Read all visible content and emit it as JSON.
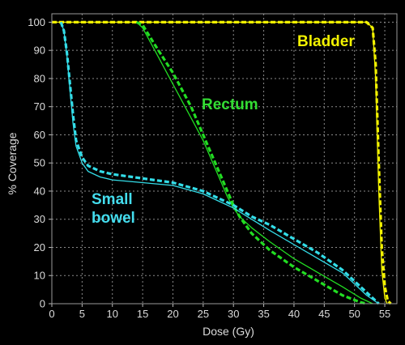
{
  "chart_data": {
    "type": "line",
    "xlabel": "Dose (Gy)",
    "ylabel": "% Coverage",
    "xlim": [
      0,
      57
    ],
    "ylim": [
      0,
      103
    ],
    "xticks": [
      0,
      5,
      10,
      15,
      20,
      25,
      30,
      35,
      40,
      45,
      50,
      55
    ],
    "yticks": [
      0,
      10,
      20,
      30,
      40,
      50,
      60,
      70,
      80,
      90,
      100
    ],
    "grid": true,
    "background": "#000000",
    "annotations": [
      {
        "lines": [
          "Bladder"
        ],
        "color": "#f2f200"
      },
      {
        "lines": [
          "Rectum"
        ],
        "color": "#33dd33"
      },
      {
        "lines": [
          "Small",
          "bowel"
        ],
        "color": "#44ddee"
      }
    ],
    "series": [
      {
        "color": "#f2f200",
        "style": "solid",
        "x": [
          0,
          52,
          53,
          53.5,
          54,
          54.5,
          55,
          55.4
        ],
        "y": [
          100,
          100,
          98,
          80,
          40,
          12,
          2,
          0
        ]
      },
      {
        "color": "#f2f200",
        "style": "dashed",
        "x": [
          0,
          52,
          53,
          53.5,
          54,
          54.5,
          55,
          55.5,
          56
        ],
        "y": [
          100,
          100,
          98,
          85,
          50,
          20,
          6,
          1,
          0
        ]
      },
      {
        "color": "#22dd22",
        "style": "solid",
        "x": [
          14,
          15,
          17,
          20,
          23,
          25,
          27,
          29,
          30,
          31,
          33,
          36,
          40,
          44,
          48,
          51,
          53
        ],
        "y": [
          100,
          98,
          90,
          78,
          66,
          58,
          48,
          38,
          34,
          31,
          27,
          22,
          16,
          11,
          6,
          2,
          0
        ]
      },
      {
        "color": "#22dd22",
        "style": "dashed",
        "x": [
          14,
          15,
          17,
          20,
          23,
          25,
          27,
          29,
          30,
          31,
          33,
          36,
          40,
          44,
          48,
          51,
          52
        ],
        "y": [
          100,
          99,
          92,
          82,
          70,
          60,
          50,
          40,
          35,
          31,
          25,
          19,
          13,
          8,
          3,
          0.5,
          0
        ]
      },
      {
        "color": "#33dde8",
        "style": "solid",
        "x": [
          1.5,
          2,
          2.5,
          3,
          3.5,
          4,
          5,
          6,
          8,
          10,
          15,
          20,
          25,
          28,
          30,
          33,
          36,
          40,
          44,
          48,
          50,
          52,
          54
        ],
        "y": [
          100,
          97,
          88,
          76,
          64,
          56,
          50,
          47,
          45,
          44,
          43,
          42,
          39,
          36,
          34,
          30,
          26,
          21,
          16,
          11,
          7,
          3,
          0
        ]
      },
      {
        "color": "#33dde8",
        "style": "dashed",
        "x": [
          1.5,
          2,
          2.5,
          3,
          3.5,
          4,
          5,
          6,
          8,
          10,
          15,
          20,
          25,
          28,
          30,
          33,
          36,
          40,
          44,
          48,
          50,
          52,
          54
        ],
        "y": [
          100,
          97,
          89,
          78,
          67,
          58,
          52,
          49,
          47,
          46,
          44.5,
          43,
          40,
          37,
          35,
          31,
          28,
          23,
          18,
          12,
          8,
          4,
          0
        ]
      }
    ]
  }
}
